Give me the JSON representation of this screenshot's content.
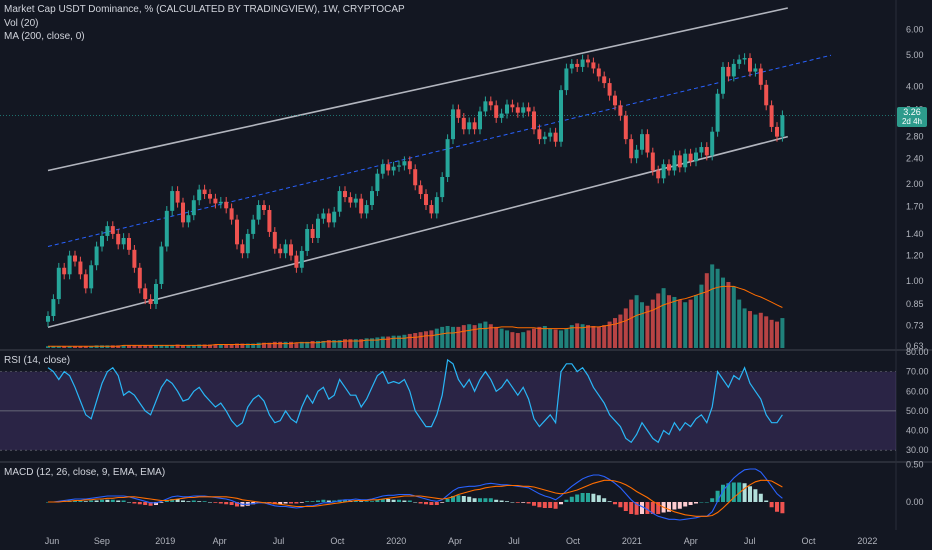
{
  "header": {
    "title": "Market Cap USDT Dominance, % (CALCULATED BY TRADINGVIEW), 1W, CRYPTOCAP",
    "vol_label": "Vol (20)",
    "ma_label": "MA (200, close, 0)",
    "rsi_label": "RSI (14, close)",
    "macd_label": "MACD (12, 26, close, 9, EMA, EMA)"
  },
  "price_badge": {
    "value": "3.26",
    "countdown": "2d 4h"
  },
  "colors": {
    "up": "#26a69a",
    "down": "#ef5350",
    "rsi": "#29b6f6",
    "macd": "#2962ff",
    "signal": "#ff6d00",
    "channel": "#b2b5be",
    "mid": "#2962ff"
  },
  "chart_data": {
    "type": "candlestick",
    "price_axis": {
      "scale": "log",
      "ticks": [
        "6.00",
        "5.00",
        "4.00",
        "3.40",
        "2.80",
        "2.40",
        "2.00",
        "1.70",
        "1.40",
        "1.20",
        "1.00",
        "0.85",
        "0.73",
        "0.63"
      ],
      "range": [
        0.63,
        7.0
      ]
    },
    "time_axis": {
      "ticks": [
        "Jun",
        "Sep",
        "2019",
        "Apr",
        "Jul",
        "Oct",
        "2020",
        "Apr",
        "Jul",
        "Oct",
        "2021",
        "Apr",
        "Jul",
        "Oct",
        "2022"
      ]
    },
    "rsi_axis": {
      "ticks": [
        "80.00",
        "70.00",
        "60.00",
        "50.00",
        "40.00",
        "30.00"
      ],
      "range": [
        25,
        80
      ],
      "band": [
        30,
        70
      ],
      "mid": 50
    },
    "macd_axis": {
      "ticks": [
        "0.50",
        "0.00"
      ]
    },
    "channel": {
      "upper": [
        [
          0,
          2.2
        ],
        [
          137,
          7.0
        ]
      ],
      "lower": [
        [
          0,
          0.72
        ],
        [
          137,
          2.8
        ]
      ],
      "midline": [
        [
          0,
          1.28
        ],
        [
          145,
          5.0
        ]
      ]
    },
    "last_close": 3.26,
    "close": [
      0.78,
      0.88,
      1.1,
      1.05,
      1.2,
      1.15,
      1.05,
      0.95,
      1.12,
      1.28,
      1.38,
      1.48,
      1.4,
      1.3,
      1.36,
      1.25,
      1.1,
      0.95,
      0.88,
      0.85,
      0.98,
      1.28,
      1.65,
      1.9,
      1.75,
      1.52,
      1.6,
      1.78,
      1.92,
      1.86,
      1.8,
      1.74,
      1.76,
      1.68,
      1.55,
      1.3,
      1.22,
      1.4,
      1.55,
      1.72,
      1.66,
      1.42,
      1.26,
      1.22,
      1.3,
      1.2,
      1.1,
      1.24,
      1.45,
      1.36,
      1.56,
      1.62,
      1.52,
      1.64,
      1.9,
      1.82,
      1.75,
      1.8,
      1.62,
      1.72,
      1.9,
      2.15,
      2.3,
      2.2,
      2.26,
      2.28,
      2.35,
      2.22,
      1.98,
      1.86,
      1.72,
      1.62,
      1.82,
      2.1,
      2.75,
      3.4,
      3.2,
      2.95,
      3.1,
      2.95,
      3.35,
      3.6,
      3.5,
      3.2,
      3.3,
      3.52,
      3.45,
      3.32,
      3.45,
      3.35,
      2.95,
      2.75,
      2.8,
      2.88,
      2.7,
      3.9,
      4.55,
      4.7,
      4.6,
      4.85,
      4.75,
      4.55,
      4.3,
      4.1,
      3.75,
      3.5,
      3.25,
      2.75,
      2.4,
      2.55,
      2.85,
      2.5,
      2.2,
      2.08,
      2.3,
      2.2,
      2.45,
      2.25,
      2.48,
      2.35,
      2.5,
      2.6,
      2.45,
      2.9,
      3.8,
      4.6,
      4.3,
      4.7,
      4.85,
      4.9,
      4.45,
      4.55,
      4.05,
      3.5,
      3.0,
      2.8,
      3.26
    ],
    "volume": [
      0.02,
      0.02,
      0.02,
      0.02,
      0.02,
      0.02,
      0.02,
      0.02,
      0.02,
      0.03,
      0.03,
      0.03,
      0.03,
      0.03,
      0.03,
      0.03,
      0.03,
      0.03,
      0.03,
      0.03,
      0.03,
      0.03,
      0.03,
      0.03,
      0.04,
      0.03,
      0.03,
      0.03,
      0.04,
      0.04,
      0.04,
      0.04,
      0.04,
      0.04,
      0.04,
      0.05,
      0.05,
      0.05,
      0.05,
      0.06,
      0.06,
      0.06,
      0.07,
      0.07,
      0.07,
      0.07,
      0.06,
      0.07,
      0.07,
      0.08,
      0.08,
      0.08,
      0.09,
      0.09,
      0.09,
      0.1,
      0.1,
      0.1,
      0.1,
      0.11,
      0.11,
      0.12,
      0.13,
      0.13,
      0.14,
      0.14,
      0.15,
      0.16,
      0.17,
      0.18,
      0.19,
      0.2,
      0.22,
      0.24,
      0.25,
      0.24,
      0.24,
      0.26,
      0.27,
      0.26,
      0.28,
      0.3,
      0.27,
      0.24,
      0.22,
      0.2,
      0.18,
      0.17,
      0.18,
      0.2,
      0.22,
      0.24,
      0.25,
      0.22,
      0.21,
      0.2,
      0.22,
      0.26,
      0.28,
      0.27,
      0.26,
      0.25,
      0.24,
      0.26,
      0.3,
      0.34,
      0.38,
      0.45,
      0.55,
      0.6,
      0.52,
      0.48,
      0.55,
      0.62,
      0.68,
      0.6,
      0.58,
      0.55,
      0.52,
      0.55,
      0.6,
      0.72,
      0.85,
      0.95,
      0.9,
      0.8,
      0.75,
      0.7,
      0.55,
      0.45,
      0.42,
      0.38,
      0.4,
      0.36,
      0.32,
      0.3,
      0.34
    ],
    "volume_ma": [
      0.02,
      0.02,
      0.02,
      0.02,
      0.02,
      0.02,
      0.02,
      0.02,
      0.02,
      0.02,
      0.02,
      0.02,
      0.02,
      0.02,
      0.03,
      0.03,
      0.03,
      0.03,
      0.03,
      0.03,
      0.03,
      0.03,
      0.03,
      0.03,
      0.03,
      0.03,
      0.03,
      0.03,
      0.03,
      0.03,
      0.03,
      0.04,
      0.04,
      0.04,
      0.04,
      0.04,
      0.04,
      0.04,
      0.04,
      0.04,
      0.05,
      0.05,
      0.05,
      0.05,
      0.05,
      0.05,
      0.06,
      0.06,
      0.06,
      0.06,
      0.06,
      0.07,
      0.07,
      0.07,
      0.07,
      0.08,
      0.08,
      0.08,
      0.08,
      0.09,
      0.09,
      0.09,
      0.1,
      0.1,
      0.11,
      0.11,
      0.11,
      0.12,
      0.12,
      0.13,
      0.14,
      0.14,
      0.15,
      0.16,
      0.17,
      0.17,
      0.18,
      0.19,
      0.2,
      0.21,
      0.22,
      0.22,
      0.23,
      0.23,
      0.24,
      0.24,
      0.24,
      0.23,
      0.23,
      0.23,
      0.23,
      0.22,
      0.22,
      0.22,
      0.22,
      0.22,
      0.22,
      0.23,
      0.23,
      0.23,
      0.24,
      0.24,
      0.24,
      0.25,
      0.26,
      0.27,
      0.29,
      0.31,
      0.34,
      0.37,
      0.39,
      0.41,
      0.43,
      0.46,
      0.49,
      0.51,
      0.53,
      0.55,
      0.56,
      0.58,
      0.6,
      0.62,
      0.64,
      0.67,
      0.69,
      0.7,
      0.7,
      0.7,
      0.68,
      0.66,
      0.63,
      0.6,
      0.58,
      0.55,
      0.52,
      0.49,
      0.46
    ],
    "rsi": [
      72,
      70,
      66,
      70,
      68,
      62,
      55,
      48,
      46,
      55,
      64,
      70,
      72,
      68,
      58,
      60,
      58,
      54,
      50,
      48,
      55,
      62,
      66,
      64,
      60,
      55,
      56,
      60,
      62,
      58,
      55,
      52,
      54,
      50,
      45,
      42,
      44,
      52,
      56,
      58,
      55,
      48,
      44,
      45,
      50,
      46,
      44,
      52,
      58,
      54,
      60,
      62,
      56,
      58,
      66,
      62,
      58,
      58,
      52,
      56,
      62,
      68,
      70,
      64,
      65,
      64,
      66,
      60,
      50,
      46,
      42,
      42,
      48,
      58,
      76,
      74,
      66,
      62,
      66,
      60,
      66,
      70,
      66,
      60,
      62,
      66,
      62,
      58,
      62,
      56,
      46,
      42,
      45,
      48,
      44,
      70,
      74,
      74,
      70,
      72,
      68,
      62,
      58,
      54,
      48,
      45,
      42,
      36,
      34,
      38,
      44,
      40,
      36,
      34,
      40,
      38,
      44,
      40,
      44,
      42,
      46,
      48,
      44,
      52,
      70,
      66,
      62,
      68,
      66,
      72,
      64,
      60,
      56,
      48,
      44,
      44,
      48
    ],
    "macd": [
      0.0,
      0.0,
      0.01,
      0.02,
      0.03,
      0.04,
      0.04,
      0.04,
      0.05,
      0.06,
      0.07,
      0.08,
      0.08,
      0.08,
      0.08,
      0.07,
      0.05,
      0.03,
      0.01,
      -0.01,
      -0.01,
      0.01,
      0.04,
      0.07,
      0.08,
      0.07,
      0.07,
      0.08,
      0.08,
      0.08,
      0.07,
      0.06,
      0.05,
      0.04,
      0.02,
      -0.01,
      -0.03,
      -0.03,
      -0.02,
      -0.01,
      -0.01,
      -0.03,
      -0.05,
      -0.06,
      -0.06,
      -0.07,
      -0.08,
      -0.07,
      -0.05,
      -0.05,
      -0.03,
      -0.01,
      -0.01,
      0.0,
      0.02,
      0.03,
      0.03,
      0.04,
      0.03,
      0.03,
      0.04,
      0.06,
      0.08,
      0.09,
      0.09,
      0.1,
      0.1,
      0.1,
      0.08,
      0.06,
      0.04,
      0.02,
      0.01,
      0.03,
      0.09,
      0.15,
      0.19,
      0.2,
      0.21,
      0.21,
      0.22,
      0.24,
      0.25,
      0.24,
      0.23,
      0.23,
      0.22,
      0.21,
      0.2,
      0.19,
      0.15,
      0.11,
      0.08,
      0.06,
      0.03,
      0.08,
      0.15,
      0.21,
      0.26,
      0.31,
      0.34,
      0.36,
      0.36,
      0.34,
      0.3,
      0.25,
      0.19,
      0.11,
      0.03,
      -0.03,
      -0.06,
      -0.1,
      -0.15,
      -0.19,
      -0.21,
      -0.23,
      -0.23,
      -0.24,
      -0.23,
      -0.22,
      -0.21,
      -0.19,
      -0.19,
      -0.13,
      0.01,
      0.15,
      0.24,
      0.32,
      0.38,
      0.43,
      0.44,
      0.44,
      0.4,
      0.31,
      0.21,
      0.11,
      0.05
    ],
    "signal": [
      0.0,
      0.0,
      0.0,
      0.01,
      0.01,
      0.02,
      0.02,
      0.03,
      0.03,
      0.04,
      0.04,
      0.05,
      0.05,
      0.06,
      0.06,
      0.07,
      0.07,
      0.06,
      0.05,
      0.04,
      0.03,
      0.02,
      0.02,
      0.03,
      0.04,
      0.05,
      0.06,
      0.06,
      0.07,
      0.07,
      0.07,
      0.07,
      0.07,
      0.07,
      0.06,
      0.05,
      0.03,
      0.02,
      0.01,
      0.0,
      -0.01,
      -0.01,
      -0.02,
      -0.03,
      -0.04,
      -0.05,
      -0.06,
      -0.06,
      -0.06,
      -0.06,
      -0.05,
      -0.04,
      -0.03,
      -0.02,
      -0.01,
      0.0,
      0.01,
      0.02,
      0.02,
      0.02,
      0.03,
      0.03,
      0.04,
      0.05,
      0.06,
      0.07,
      0.08,
      0.08,
      0.08,
      0.08,
      0.07,
      0.06,
      0.05,
      0.04,
      0.05,
      0.07,
      0.1,
      0.12,
      0.14,
      0.16,
      0.17,
      0.19,
      0.2,
      0.21,
      0.21,
      0.22,
      0.22,
      0.22,
      0.21,
      0.21,
      0.2,
      0.18,
      0.16,
      0.14,
      0.12,
      0.11,
      0.12,
      0.14,
      0.16,
      0.19,
      0.22,
      0.25,
      0.27,
      0.29,
      0.29,
      0.28,
      0.26,
      0.23,
      0.19,
      0.14,
      0.1,
      0.06,
      0.01,
      -0.03,
      -0.07,
      -0.1,
      -0.13,
      -0.15,
      -0.17,
      -0.18,
      -0.19,
      -0.19,
      -0.19,
      -0.18,
      -0.14,
      -0.08,
      -0.01,
      0.06,
      0.12,
      0.18,
      0.23,
      0.27,
      0.29,
      0.29,
      0.28,
      0.24,
      0.2
    ]
  }
}
